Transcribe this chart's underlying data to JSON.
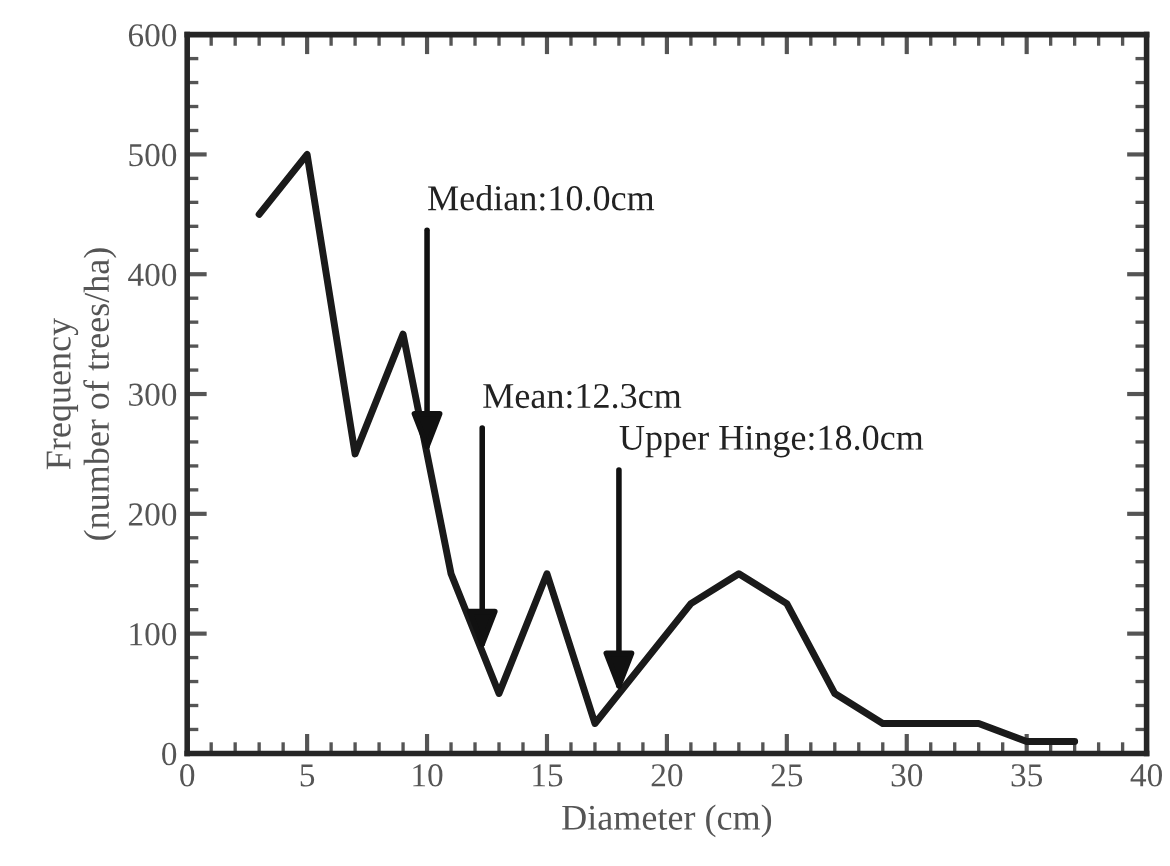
{
  "chart_data": {
    "type": "line",
    "xlabel": "Diameter (cm)",
    "ylabel": "Frequency\n(number of trees/ha)",
    "x": [
      3,
      5,
      7,
      9,
      11,
      13,
      15,
      17,
      19,
      21,
      23,
      25,
      27,
      29,
      31,
      33,
      35,
      37
    ],
    "series": [
      {
        "color": "#1a1a1a",
        "values": [
          450,
          500,
          250,
          350,
          150,
          50,
          150,
          25,
          75,
          125,
          150,
          125,
          50,
          25,
          25,
          25,
          10,
          10
        ]
      }
    ],
    "xlim": [
      0,
      40
    ],
    "xticks": [
      0,
      5,
      10,
      15,
      20,
      25,
      30,
      35,
      40
    ],
    "ylim": [
      0,
      600
    ],
    "yticks": [
      0,
      100,
      200,
      300,
      400,
      500,
      600
    ],
    "grid": false,
    "legend": false,
    "marker": "none",
    "line_style": "solid",
    "annotations": [
      {
        "text": "Median:10.0cm",
        "x": 10,
        "y": 250
      },
      {
        "text": "Mean:12.3cm",
        "x": 12.3,
        "y": 85
      },
      {
        "text": "Upper Hinge:18.0cm",
        "x": 18,
        "y": 50
      }
    ]
  }
}
